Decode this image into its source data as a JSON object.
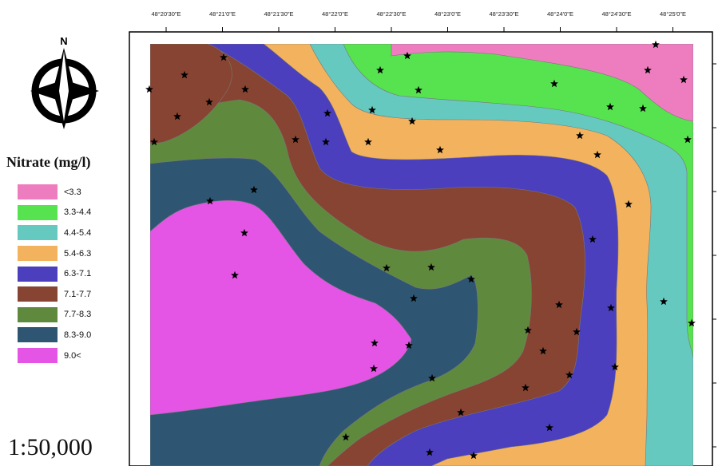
{
  "map": {
    "legend_title": "Nitrate (mg/l)",
    "legend": [
      {
        "label": "<3.3",
        "color": "#ee7dc0"
      },
      {
        "label": "3.3-4.4",
        "color": "#56e34f"
      },
      {
        "label": "4.4-5.4",
        "color": "#66c9c0"
      },
      {
        "label": "5.4-6.3",
        "color": "#f3b35e"
      },
      {
        "label": "6.3-7.1",
        "color": "#4b3fbd"
      },
      {
        "label": "7.1-7.7",
        "color": "#874432"
      },
      {
        "label": "7.7-8.3",
        "color": "#5f8a3e"
      },
      {
        "label": "8.3-9.0",
        "color": "#2e5673"
      },
      {
        "label": "9.0<",
        "color": "#e455e6"
      }
    ],
    "scale": "1:50,000",
    "longitude_labels": [
      "48°20'30\"E",
      "48°21'0\"E",
      "48°21'30\"E",
      "48°22'0\"E",
      "48°22'30\"E",
      "48°23'0\"E",
      "48°23'30\"E",
      "48°24'0\"E",
      "48°24'30\"E",
      "48°25'0\"E"
    ],
    "north_arrow_letter": "N",
    "sample_point_icon": "star-icon"
  }
}
